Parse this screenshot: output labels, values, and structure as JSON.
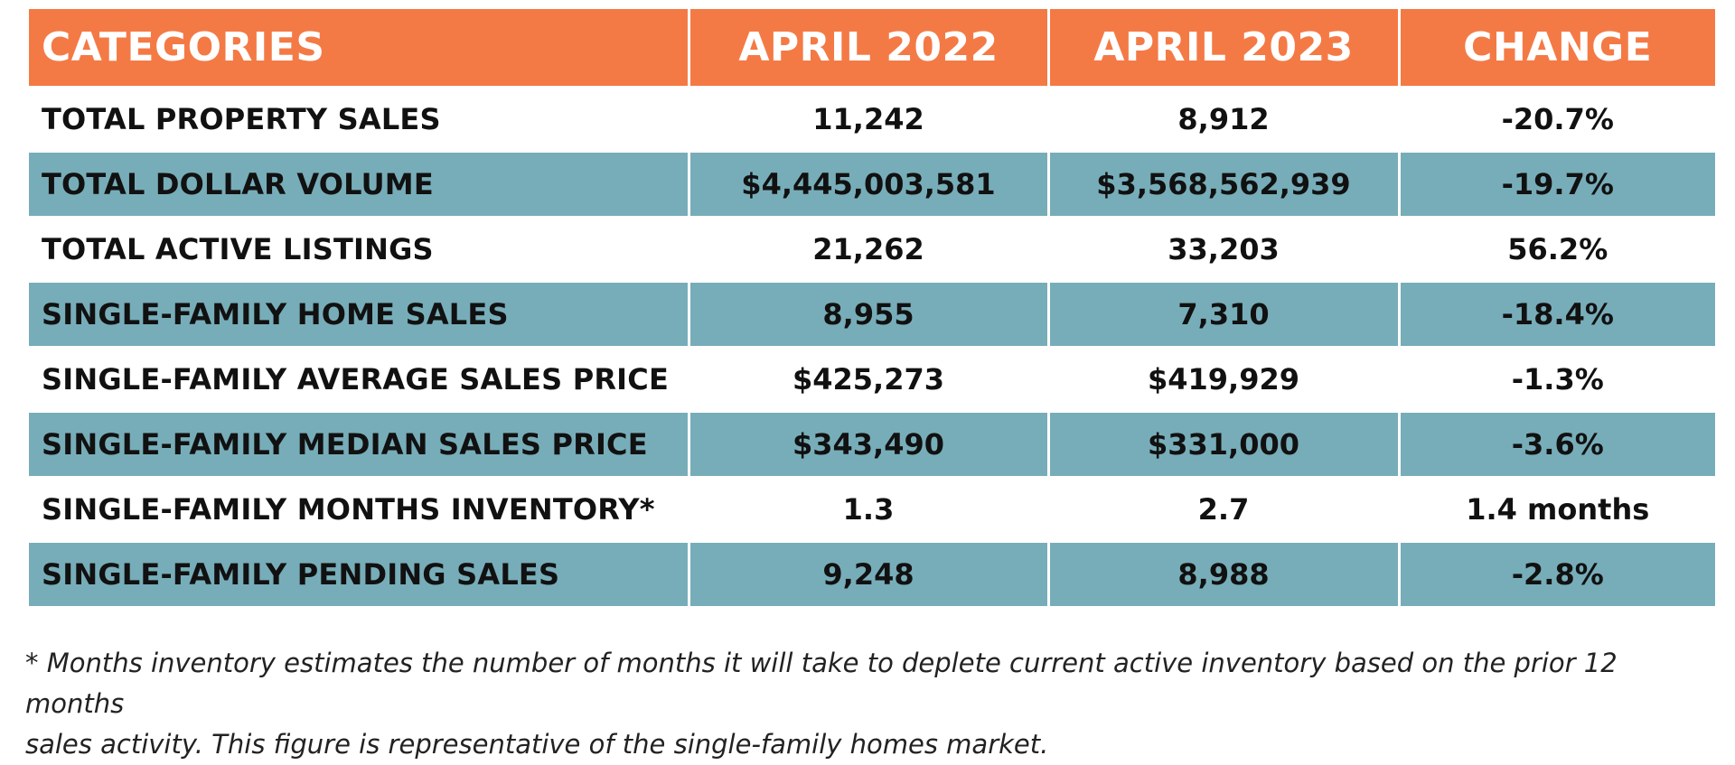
{
  "table": {
    "headers": [
      "CATEGORIES",
      "APRIL 2022",
      "APRIL 2023",
      "CHANGE"
    ],
    "rows": [
      [
        "TOTAL PROPERTY SALES",
        "11,242",
        "8,912",
        "-20.7%"
      ],
      [
        "TOTAL DOLLAR VOLUME",
        "$4,445,003,581",
        "$3,568,562,939",
        "-19.7%"
      ],
      [
        "TOTAL ACTIVE LISTINGS",
        "21,262",
        "33,203",
        "56.2%"
      ],
      [
        "SINGLE-FAMILY HOME SALES",
        "8,955",
        "7,310",
        "-18.4%"
      ],
      [
        "SINGLE-FAMILY AVERAGE SALES PRICE",
        "$425,273",
        "$419,929",
        "-1.3%"
      ],
      [
        "SINGLE-FAMILY MEDIAN SALES PRICE",
        "$343,490",
        "$331,000",
        "-3.6%"
      ],
      [
        "SINGLE-FAMILY MONTHS INVENTORY*",
        "1.3",
        "2.7",
        "1.4 months"
      ],
      [
        "SINGLE-FAMILY PENDING SALES",
        "9,248",
        "8,988",
        "-2.8%"
      ]
    ]
  },
  "footnote": {
    "line1": "* Months inventory estimates the number of months it will take to deplete current active inventory based on the prior 12 months",
    "line2": "sales activity. This figure is representative of the single-family homes market."
  },
  "colors": {
    "header_bg": "#f47a45",
    "shaded_row_bg": "#77adb9",
    "plain_row_bg": "#ffffff"
  }
}
